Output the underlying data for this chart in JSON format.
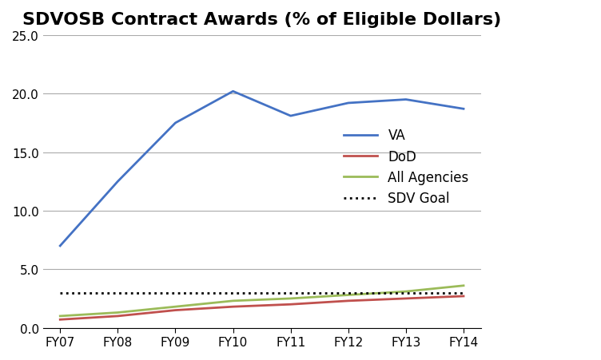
{
  "title": "SDVOSB Contract Awards (% of Eligible Dollars)",
  "x_labels": [
    "FY07",
    "FY08",
    "FY09",
    "FY10",
    "FY11",
    "FY12",
    "FY13",
    "FY14"
  ],
  "VA": [
    7.0,
    12.5,
    17.5,
    20.2,
    18.1,
    19.2,
    19.5,
    18.7
  ],
  "DoD": [
    0.7,
    1.0,
    1.5,
    1.8,
    2.0,
    2.3,
    2.5,
    2.7
  ],
  "All_Agencies": [
    1.0,
    1.3,
    1.8,
    2.3,
    2.5,
    2.8,
    3.1,
    3.6
  ],
  "SDV_Goal": [
    3.0,
    3.0,
    3.0,
    3.0,
    3.0,
    3.0,
    3.0,
    3.0
  ],
  "VA_color": "#4472C4",
  "DoD_color": "#C0504D",
  "All_Agencies_color": "#9BBB59",
  "SDV_Goal_color": "#000000",
  "background_color": "#FFFFFF",
  "ylim": [
    0,
    25.0
  ],
  "yticks": [
    0.0,
    5.0,
    10.0,
    15.0,
    20.0,
    25.0
  ],
  "legend_labels": [
    "VA",
    "DoD",
    "All Agencies",
    "SDV Goal"
  ],
  "line_width": 2.0,
  "title_fontsize": 16,
  "tick_fontsize": 11,
  "legend_fontsize": 12
}
